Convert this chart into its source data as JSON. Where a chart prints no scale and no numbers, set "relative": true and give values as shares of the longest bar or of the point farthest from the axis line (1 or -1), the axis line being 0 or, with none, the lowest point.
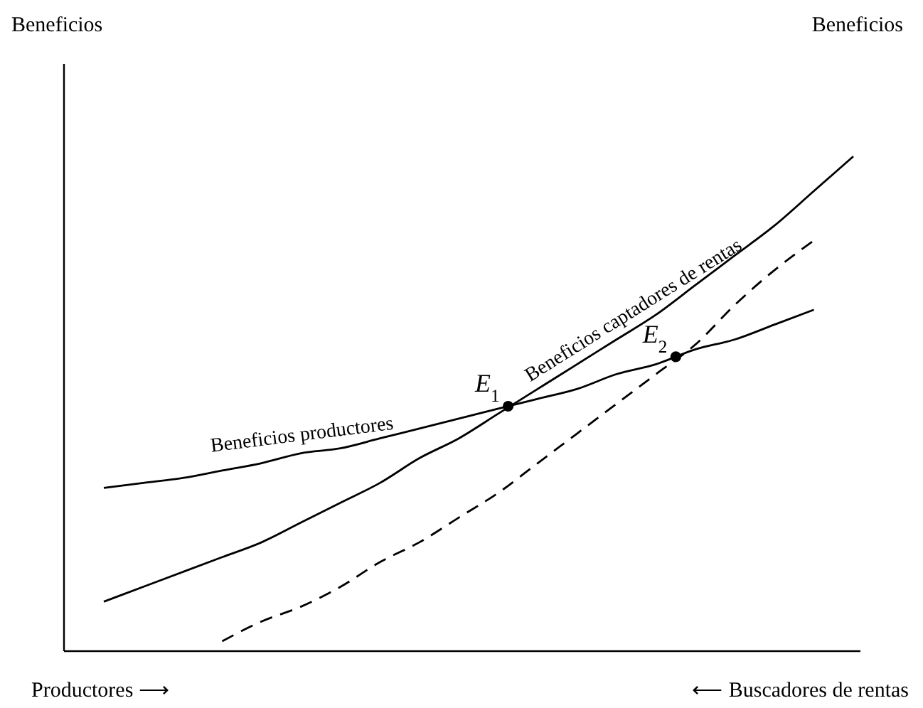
{
  "chart_data": {
    "type": "line",
    "relative": true,
    "xlabel": "Productores ⟶",
    "categories": [
      null,
      null,
      null,
      null,
      null,
      null,
      null,
      null,
      null,
      null,
      null,
      null,
      null,
      null,
      null,
      null,
      null,
      null,
      null,
      null
    ],
    "series": [
      {
        "name": "Beneficios productores",
        "color": "#000000",
        "line_style": "solid",
        "values": [
          0.33,
          0.34,
          0.35,
          0.365,
          0.38,
          0.4,
          0.41,
          0.43,
          0.45,
          0.47,
          0.49,
          0.51,
          0.53,
          0.56,
          0.58,
          0.61,
          0.63,
          0.66,
          0.69,
          null
        ]
      },
      {
        "name": "Beneficios captadores de rentas",
        "color": "#000000",
        "line_style": "solid",
        "values": [
          0.1,
          0.13,
          0.16,
          0.19,
          0.22,
          0.26,
          0.3,
          0.34,
          0.39,
          0.43,
          0.48,
          0.53,
          0.58,
          0.63,
          0.68,
          0.74,
          0.8,
          0.86,
          0.93,
          1
        ]
      },
      {
        "color": "#000000",
        "line_style": "dashed",
        "values": [
          null,
          null,
          null,
          0.02,
          0.06,
          0.09,
          0.13,
          0.18,
          0.22,
          0.27,
          0.32,
          0.38,
          0.44,
          0.5,
          0.56,
          0.62,
          0.7,
          0.77,
          0.83,
          null
        ]
      }
    ],
    "annotations": [
      "Beneficios",
      "Beneficios",
      {
        "text": "E$_{1}$",
        "y": 0.495
      },
      {
        "text": "E$_{2}$",
        "y": 0.595
      },
      "⟵ Buscadores de rentas"
    ],
    "grid": false,
    "legend": false,
    "tick_labels": false,
    "marker": "none"
  }
}
